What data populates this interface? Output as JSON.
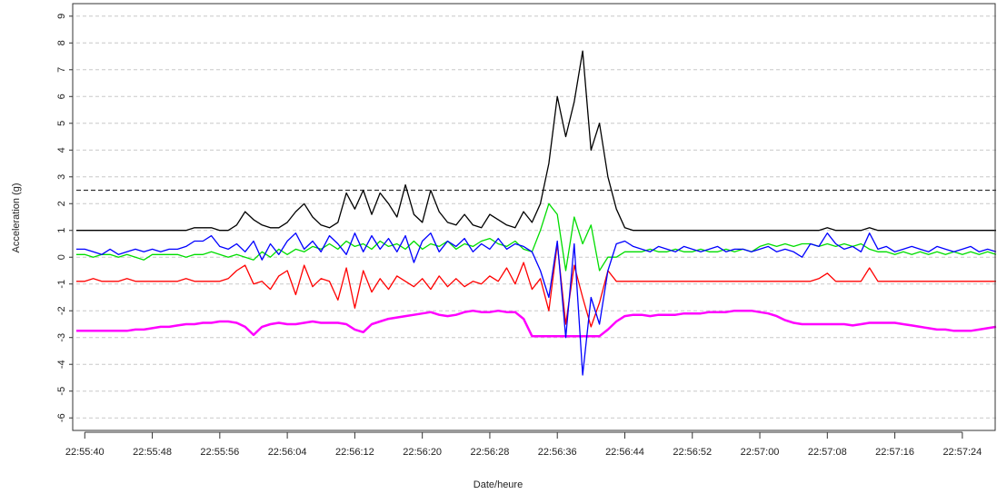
{
  "chart_data": {
    "type": "line",
    "x_label": "Date/heure",
    "y_label": "Acceleration (g)",
    "xlim": [
      "22:55:39",
      "22:57:28"
    ],
    "xticks": [
      "22:55:40",
      "22:55:48",
      "22:55:56",
      "22:56:04",
      "22:56:12",
      "22:56:20",
      "22:56:28",
      "22:56:36",
      "22:56:44",
      "22:56:52",
      "22:57:00",
      "22:57:08",
      "22:57:16",
      "22:57:24"
    ],
    "ylim": [
      -6.4,
      9.4
    ],
    "yticks": [
      -6,
      -5,
      -4,
      -3,
      -2,
      -1,
      0,
      1,
      2,
      3,
      4,
      5,
      6,
      7,
      8,
      9
    ],
    "grid": true,
    "hlines": [
      2.5
    ],
    "x": [
      "22:55:39",
      "22:55:40",
      "22:55:41",
      "22:55:42",
      "22:55:43",
      "22:55:44",
      "22:55:45",
      "22:55:46",
      "22:55:47",
      "22:55:48",
      "22:55:49",
      "22:55:50",
      "22:55:51",
      "22:55:52",
      "22:55:53",
      "22:55:54",
      "22:55:55",
      "22:55:56",
      "22:55:57",
      "22:55:58",
      "22:55:59",
      "22:56:00",
      "22:56:01",
      "22:56:02",
      "22:56:03",
      "22:56:04",
      "22:56:05",
      "22:56:06",
      "22:56:07",
      "22:56:08",
      "22:56:09",
      "22:56:10",
      "22:56:11",
      "22:56:12",
      "22:56:13",
      "22:56:14",
      "22:56:15",
      "22:56:16",
      "22:56:17",
      "22:56:18",
      "22:56:19",
      "22:56:20",
      "22:56:21",
      "22:56:22",
      "22:56:23",
      "22:56:24",
      "22:56:25",
      "22:56:26",
      "22:56:27",
      "22:56:28",
      "22:56:29",
      "22:56:30",
      "22:56:31",
      "22:56:32",
      "22:56:33",
      "22:56:34",
      "22:56:35",
      "22:56:36",
      "22:56:37",
      "22:56:38",
      "22:56:39",
      "22:56:40",
      "22:56:41",
      "22:56:42",
      "22:56:43",
      "22:56:44",
      "22:56:45",
      "22:56:46",
      "22:56:47",
      "22:56:48",
      "22:56:49",
      "22:56:50",
      "22:56:51",
      "22:56:52",
      "22:56:53",
      "22:56:54",
      "22:56:55",
      "22:56:56",
      "22:56:57",
      "22:56:58",
      "22:56:59",
      "22:57:00",
      "22:57:01",
      "22:57:02",
      "22:57:03",
      "22:57:04",
      "22:57:05",
      "22:57:06",
      "22:57:07",
      "22:57:08",
      "22:57:09",
      "22:57:10",
      "22:57:11",
      "22:57:12",
      "22:57:13",
      "22:57:14",
      "22:57:15",
      "22:57:16",
      "22:57:17",
      "22:57:18",
      "22:57:19",
      "22:57:20",
      "22:57:21",
      "22:57:22",
      "22:57:23",
      "22:57:24",
      "22:57:25",
      "22:57:26",
      "22:57:27",
      "22:57:28"
    ],
    "series": [
      {
        "color": "#ff00ff",
        "values": [
          -2.75,
          -2.75,
          -2.75,
          -2.75,
          -2.75,
          -2.75,
          -2.75,
          -2.7,
          -2.7,
          -2.65,
          -2.6,
          -2.6,
          -2.55,
          -2.5,
          -2.5,
          -2.45,
          -2.45,
          -2.4,
          -2.4,
          -2.45,
          -2.6,
          -2.9,
          -2.6,
          -2.5,
          -2.45,
          -2.5,
          -2.5,
          -2.45,
          -2.4,
          -2.45,
          -2.45,
          -2.45,
          -2.5,
          -2.7,
          -2.8,
          -2.5,
          -2.4,
          -2.3,
          -2.25,
          -2.2,
          -2.15,
          -2.1,
          -2.05,
          -2.15,
          -2.2,
          -2.15,
          -2.05,
          -2.0,
          -2.05,
          -2.05,
          -2.0,
          -2.05,
          -2.05,
          -2.3,
          -2.95,
          -2.95,
          -2.95,
          -2.95,
          -2.95,
          -2.95,
          -2.95,
          -2.95,
          -2.95,
          -2.7,
          -2.4,
          -2.2,
          -2.15,
          -2.15,
          -2.2,
          -2.15,
          -2.15,
          -2.15,
          -2.1,
          -2.1,
          -2.1,
          -2.05,
          -2.05,
          -2.05,
          -2.0,
          -2.0,
          -2.0,
          -2.05,
          -2.1,
          -2.2,
          -2.35,
          -2.45,
          -2.5,
          -2.5,
          -2.5,
          -2.5,
          -2.5,
          -2.5,
          -2.55,
          -2.5,
          -2.45,
          -2.45,
          -2.45,
          -2.45,
          -2.5,
          -2.55,
          -2.6,
          -2.65,
          -2.7,
          -2.7,
          -2.75,
          -2.75,
          -2.75,
          -2.7,
          -2.65,
          -2.6
        ]
      },
      {
        "color": "#000000",
        "values": [
          1.0,
          1.0,
          1.0,
          1.0,
          1.0,
          1.0,
          1.0,
          1.0,
          1.0,
          1.0,
          1.0,
          1.0,
          1.0,
          1.0,
          1.1,
          1.1,
          1.1,
          1.0,
          1.0,
          1.2,
          1.7,
          1.4,
          1.2,
          1.1,
          1.1,
          1.3,
          1.7,
          2.0,
          1.5,
          1.2,
          1.1,
          1.3,
          2.4,
          1.8,
          2.5,
          1.6,
          2.4,
          2.0,
          1.5,
          2.7,
          1.6,
          1.3,
          2.5,
          1.7,
          1.3,
          1.2,
          1.6,
          1.2,
          1.1,
          1.6,
          1.4,
          1.2,
          1.1,
          1.7,
          1.3,
          2.0,
          3.5,
          6.0,
          4.5,
          5.8,
          7.7,
          4.0,
          5.0,
          3.0,
          1.8,
          1.1,
          1.0,
          1.0,
          1.0,
          1.0,
          1.0,
          1.0,
          1.0,
          1.0,
          1.0,
          1.0,
          1.0,
          1.0,
          1.0,
          1.0,
          1.0,
          1.0,
          1.0,
          1.0,
          1.0,
          1.0,
          1.0,
          1.0,
          1.0,
          1.1,
          1.0,
          1.0,
          1.0,
          1.0,
          1.1,
          1.0,
          1.0,
          1.0,
          1.0,
          1.0,
          1.0,
          1.0,
          1.0,
          1.0,
          1.0,
          1.0,
          1.0,
          1.0,
          1.0,
          1.0
        ]
      },
      {
        "color": "#ff0000",
        "values": [
          -0.9,
          -0.9,
          -0.8,
          -0.9,
          -0.9,
          -0.9,
          -0.8,
          -0.9,
          -0.9,
          -0.9,
          -0.9,
          -0.9,
          -0.9,
          -0.8,
          -0.9,
          -0.9,
          -0.9,
          -0.9,
          -0.8,
          -0.5,
          -0.3,
          -1.0,
          -0.9,
          -1.2,
          -0.7,
          -0.5,
          -1.4,
          -0.3,
          -1.1,
          -0.8,
          -0.9,
          -1.6,
          -0.4,
          -1.9,
          -0.5,
          -1.3,
          -0.8,
          -1.2,
          -0.7,
          -0.9,
          -1.1,
          -0.8,
          -1.2,
          -0.7,
          -1.1,
          -0.8,
          -1.1,
          -0.9,
          -1.0,
          -0.7,
          -0.9,
          -0.4,
          -1.0,
          -0.2,
          -1.2,
          -0.8,
          -2.0,
          0.5,
          -2.5,
          -0.3,
          -1.5,
          -2.6,
          -1.7,
          -0.5,
          -0.9,
          -0.9,
          -0.9,
          -0.9,
          -0.9,
          -0.9,
          -0.9,
          -0.9,
          -0.9,
          -0.9,
          -0.9,
          -0.9,
          -0.9,
          -0.9,
          -0.9,
          -0.9,
          -0.9,
          -0.9,
          -0.9,
          -0.9,
          -0.9,
          -0.9,
          -0.9,
          -0.9,
          -0.8,
          -0.6,
          -0.9,
          -0.9,
          -0.9,
          -0.9,
          -0.4,
          -0.9,
          -0.9,
          -0.9,
          -0.9,
          -0.9,
          -0.9,
          -0.9,
          -0.9,
          -0.9,
          -0.9,
          -0.9,
          -0.9,
          -0.9,
          -0.9,
          -0.9
        ]
      },
      {
        "color": "#00dd00",
        "values": [
          0.1,
          0.1,
          0.0,
          0.1,
          0.1,
          0.0,
          0.1,
          0.0,
          -0.1,
          0.1,
          0.1,
          0.1,
          0.1,
          0.0,
          0.1,
          0.1,
          0.2,
          0.1,
          0.0,
          0.1,
          0.0,
          -0.1,
          0.2,
          0.0,
          0.3,
          0.1,
          0.3,
          0.2,
          0.4,
          0.3,
          0.5,
          0.3,
          0.6,
          0.4,
          0.5,
          0.3,
          0.6,
          0.4,
          0.5,
          0.3,
          0.6,
          0.3,
          0.5,
          0.4,
          0.6,
          0.3,
          0.5,
          0.4,
          0.6,
          0.7,
          0.5,
          0.4,
          0.6,
          0.3,
          0.2,
          1.0,
          2.0,
          1.6,
          -0.5,
          1.5,
          0.5,
          1.2,
          -0.5,
          0.0,
          0.0,
          0.2,
          0.2,
          0.2,
          0.3,
          0.2,
          0.2,
          0.3,
          0.2,
          0.2,
          0.3,
          0.2,
          0.2,
          0.3,
          0.2,
          0.3,
          0.2,
          0.4,
          0.5,
          0.4,
          0.5,
          0.4,
          0.5,
          0.5,
          0.4,
          0.5,
          0.4,
          0.5,
          0.4,
          0.5,
          0.3,
          0.2,
          0.2,
          0.1,
          0.2,
          0.1,
          0.2,
          0.1,
          0.2,
          0.1,
          0.2,
          0.1,
          0.2,
          0.1,
          0.2,
          0.1
        ]
      },
      {
        "color": "#0000ff",
        "values": [
          0.3,
          0.3,
          0.2,
          0.1,
          0.3,
          0.1,
          0.2,
          0.3,
          0.2,
          0.3,
          0.2,
          0.3,
          0.3,
          0.4,
          0.6,
          0.6,
          0.8,
          0.4,
          0.3,
          0.5,
          0.2,
          0.6,
          -0.1,
          0.5,
          0.1,
          0.6,
          0.9,
          0.3,
          0.6,
          0.2,
          0.8,
          0.5,
          0.1,
          0.9,
          0.2,
          0.8,
          0.3,
          0.7,
          0.2,
          0.8,
          -0.2,
          0.6,
          0.9,
          0.2,
          0.6,
          0.4,
          0.7,
          0.2,
          0.5,
          0.3,
          0.7,
          0.3,
          0.5,
          0.4,
          0.2,
          -0.5,
          -1.5,
          0.6,
          -3.0,
          0.5,
          -4.4,
          -1.5,
          -2.5,
          -0.5,
          0.5,
          0.6,
          0.4,
          0.3,
          0.2,
          0.4,
          0.3,
          0.2,
          0.4,
          0.3,
          0.2,
          0.3,
          0.4,
          0.2,
          0.3,
          0.3,
          0.2,
          0.3,
          0.4,
          0.2,
          0.3,
          0.2,
          0.0,
          0.5,
          0.4,
          0.9,
          0.5,
          0.3,
          0.4,
          0.2,
          0.9,
          0.3,
          0.4,
          0.2,
          0.3,
          0.4,
          0.3,
          0.2,
          0.4,
          0.3,
          0.2,
          0.3,
          0.4,
          0.2,
          0.3,
          0.2
        ]
      }
    ]
  }
}
